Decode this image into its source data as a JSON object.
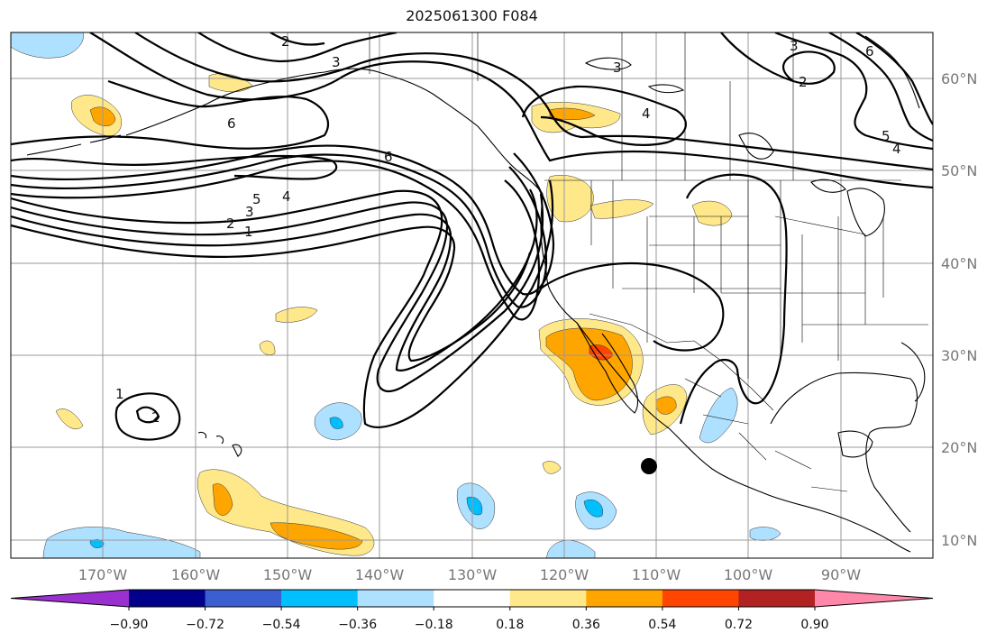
{
  "title": "2025061300 F084",
  "lat_labels": [
    "60°N",
    "50°N",
    "40°N",
    "30°N",
    "20°N",
    "10°N"
  ],
  "lon_labels": [
    "170°W",
    "160°W",
    "150°W",
    "140°W",
    "130°W",
    "120°W",
    "110°W",
    "100°W",
    "90°W"
  ],
  "contour_labels": [
    "1",
    "2",
    "3",
    "4",
    "5",
    "6"
  ],
  "colorbar": {
    "tick_labels": [
      "−0.90",
      "−0.72",
      "−0.54",
      "−0.36",
      "−0.18",
      "0.18",
      "0.36",
      "0.54",
      "0.72",
      "0.90"
    ],
    "colors": [
      "#9b30d0",
      "#00008b",
      "#3b5fd0",
      "#00bfff",
      "#aee0ff",
      "#ffffff",
      "#ffe88a",
      "#ffa500",
      "#ff4500",
      "#b22222",
      "#ff88aa"
    ]
  }
}
